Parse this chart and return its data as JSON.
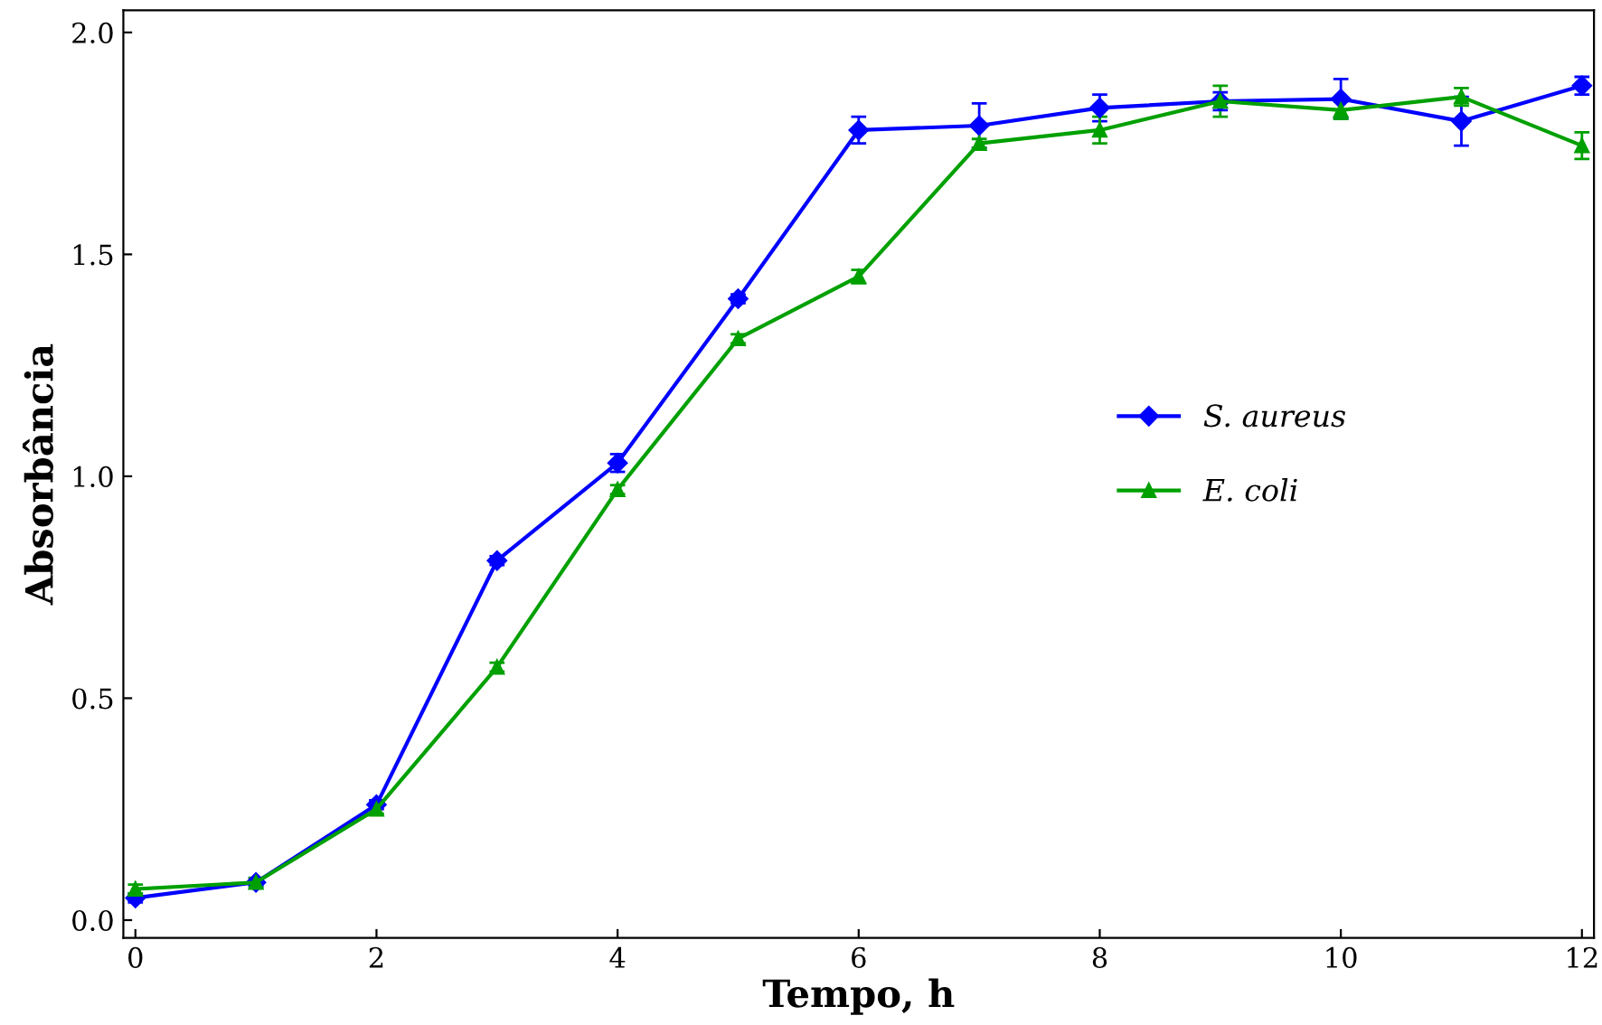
{
  "chart_data": {
    "type": "line",
    "xlabel": "Tempo, h",
    "ylabel": "Absorbância",
    "x": [
      0,
      1,
      2,
      3,
      4,
      5,
      6,
      7,
      8,
      9,
      10,
      11,
      12
    ],
    "series": [
      {
        "name": "S. aureus",
        "color": "#0000ff",
        "marker": "diamond",
        "values": [
          0.05,
          0.085,
          0.26,
          0.81,
          1.03,
          1.4,
          1.78,
          1.79,
          1.83,
          1.845,
          1.85,
          1.8,
          1.88
        ],
        "errors": [
          0.01,
          0.01,
          0.01,
          0.01,
          0.02,
          0.01,
          0.03,
          0.05,
          0.03,
          0.02,
          0.045,
          0.055,
          0.02
        ]
      },
      {
        "name": "E. coli",
        "color": "#00a000",
        "marker": "triangle",
        "values": [
          0.07,
          0.085,
          0.25,
          0.57,
          0.97,
          1.31,
          1.45,
          1.75,
          1.78,
          1.845,
          1.825,
          1.855,
          1.745
        ],
        "errors": [
          0.01,
          0.01,
          0.01,
          0.01,
          0.01,
          0.01,
          0.015,
          0.01,
          0.03,
          0.035,
          0.02,
          0.02,
          0.03
        ]
      }
    ],
    "xlim": [
      -0.1,
      12.1
    ],
    "ylim": [
      -0.04,
      2.05
    ],
    "xticks": [
      0,
      2,
      4,
      6,
      8,
      10,
      12
    ],
    "yticks": [
      {
        "value": 0,
        "label": "0.0"
      },
      {
        "value": 0.5,
        "label": "0.5"
      },
      {
        "value": 1,
        "label": "1.0"
      },
      {
        "value": 1.5,
        "label": "1.5"
      },
      {
        "value": 2,
        "label": "2.0"
      }
    ],
    "grid": false,
    "legend": "right",
    "line_style": "solid"
  }
}
